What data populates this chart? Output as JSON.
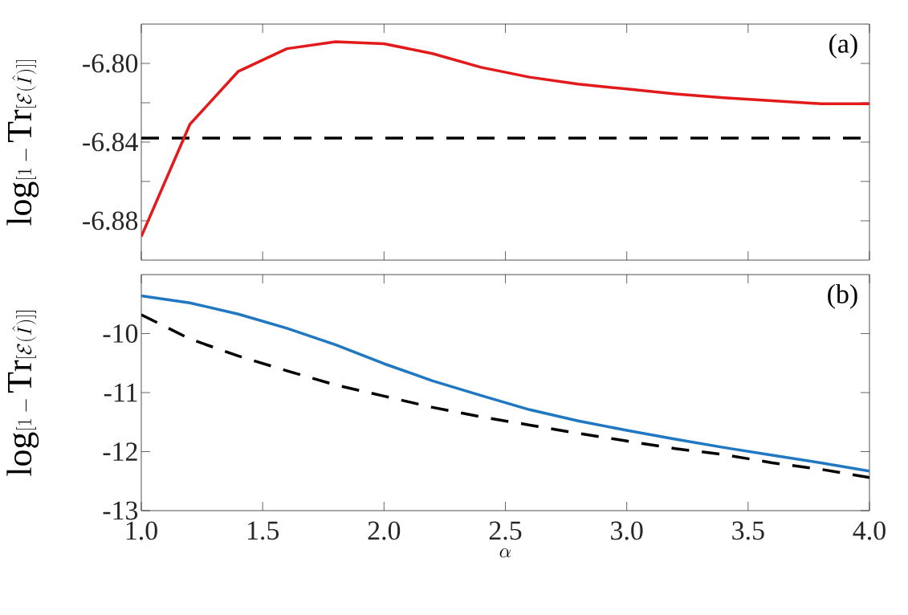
{
  "chart_data": [
    {
      "type": "line",
      "ylabel": "\\log[1-\\mathrm{Tr}[\\mathcal{E}(\\hat{I})]]",
      "x": [
        1.0,
        1.2,
        1.4,
        1.6,
        1.8,
        2.0,
        2.2,
        2.4,
        2.6,
        2.8,
        3.0,
        3.2,
        3.4,
        3.6,
        3.8,
        4.0
      ],
      "series": [
        {
          "color": "#e31a1c",
          "line_style": "solid",
          "values": [
            -6.888,
            -6.831,
            -6.804,
            -6.7925,
            -6.789,
            -6.79,
            -6.795,
            -6.802,
            -6.807,
            -6.8105,
            -6.813,
            -6.8155,
            -6.8175,
            -6.819,
            -6.8205,
            -6.8205
          ]
        }
      ],
      "ref_lines": [
        {
          "axis": "y",
          "value": -6.838,
          "color": "#000000",
          "line_style": "dashed"
        }
      ],
      "xlim": [
        1.0,
        4.0
      ],
      "ylim": [
        -6.9,
        -6.78
      ],
      "xticks": [
        {
          "value": 1.0,
          "label": null
        },
        {
          "value": 1.5,
          "label": null
        },
        {
          "value": 2.0,
          "label": null
        },
        {
          "value": 2.5,
          "label": null
        },
        {
          "value": 3.0,
          "label": null
        },
        {
          "value": 3.5,
          "label": null
        },
        {
          "value": 4.0,
          "label": null
        }
      ],
      "yticks": [
        {
          "value": -6.88,
          "label": "-6.88"
        },
        {
          "value": -6.86,
          "label": null
        },
        {
          "value": -6.84,
          "label": "-6.84"
        },
        {
          "value": -6.82,
          "label": null
        },
        {
          "value": -6.8,
          "label": "-6.80"
        }
      ],
      "tick_labels": "y",
      "annotations": [
        "(a)"
      ]
    },
    {
      "type": "line",
      "ylabel": "\\log[1-\\mathrm{Tr}[\\mathcal{E}(\\hat{I})]]",
      "xlabel": "\\alpha",
      "x": [
        1.0,
        1.2,
        1.4,
        1.6,
        1.8,
        2.0,
        2.2,
        2.4,
        2.6,
        2.8,
        3.0,
        3.2,
        3.4,
        3.6,
        3.8,
        4.0
      ],
      "series": [
        {
          "color": "#1f78c1",
          "line_style": "solid",
          "values": [
            -9.36,
            -9.48,
            -9.67,
            -9.91,
            -10.19,
            -10.51,
            -10.8,
            -11.05,
            -11.29,
            -11.48,
            -11.64,
            -11.79,
            -11.93,
            -12.06,
            -12.19,
            -12.33
          ]
        },
        {
          "color": "#000000",
          "line_style": "dashed",
          "values": [
            -9.68,
            -10.09,
            -10.38,
            -10.63,
            -10.87,
            -11.06,
            -11.25,
            -11.41,
            -11.55,
            -11.69,
            -11.82,
            -11.95,
            -12.05,
            -12.19,
            -12.3,
            -12.44
          ]
        }
      ],
      "xlim": [
        1.0,
        4.0
      ],
      "ylim": [
        -13,
        -9
      ],
      "xticks": [
        {
          "value": 1.0,
          "label": "1.0"
        },
        {
          "value": 1.5,
          "label": "1.5"
        },
        {
          "value": 2.0,
          "label": "2.0"
        },
        {
          "value": 2.5,
          "label": "2.5"
        },
        {
          "value": 3.0,
          "label": "3.0"
        },
        {
          "value": 3.5,
          "label": "3.5"
        },
        {
          "value": 4.0,
          "label": "4.0"
        }
      ],
      "yticks": [
        -13,
        -12,
        -11,
        -10
      ],
      "annotations": [
        "(b)"
      ]
    }
  ]
}
